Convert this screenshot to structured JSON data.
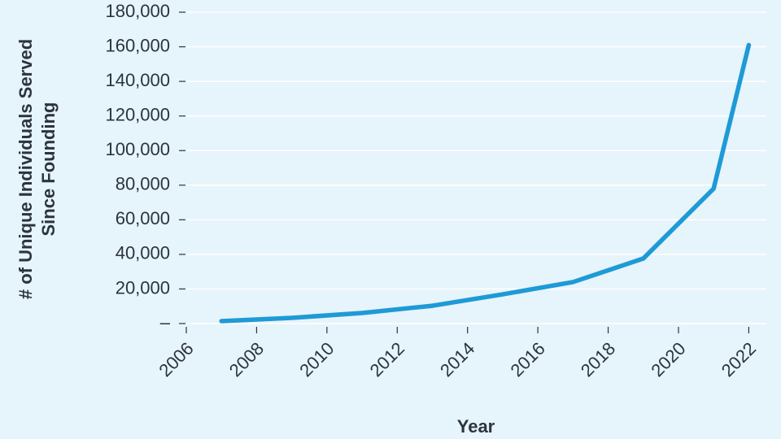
{
  "chart_data": {
    "type": "line",
    "x": [
      2007,
      2009,
      2011,
      2013,
      2015,
      2017,
      2019,
      2021,
      2022
    ],
    "series": [
      {
        "color": "#1e9ad6",
        "values": [
          1400,
          3300,
          6100,
          10300,
          16900,
          24000,
          37600,
          78000,
          161000
        ]
      }
    ],
    "xlim": [
      2006,
      2022.5
    ],
    "xticks": [
      2006,
      2008,
      2010,
      2012,
      2014,
      2016,
      2018,
      2020,
      2022
    ],
    "ylim": [
      0,
      180000
    ],
    "yticks": [
      {
        "value": 0,
        "label": "–"
      },
      {
        "value": 20000,
        "label": "20,000"
      },
      {
        "value": 40000,
        "label": "40,000"
      },
      {
        "value": 60000,
        "label": "60,000"
      },
      {
        "value": 80000,
        "label": "80,000"
      },
      {
        "value": 100000,
        "label": "100,000"
      },
      {
        "value": 120000,
        "label": "120,000"
      },
      {
        "value": 140000,
        "label": "140,000"
      },
      {
        "value": 160000,
        "label": "160,000"
      },
      {
        "value": 180000,
        "label": "180,000"
      }
    ],
    "xlabel": "Year",
    "ylabel": [
      "# of Unique Individuals Served",
      "Since Founding"
    ],
    "grid": true,
    "background": "#e6f4fb"
  }
}
